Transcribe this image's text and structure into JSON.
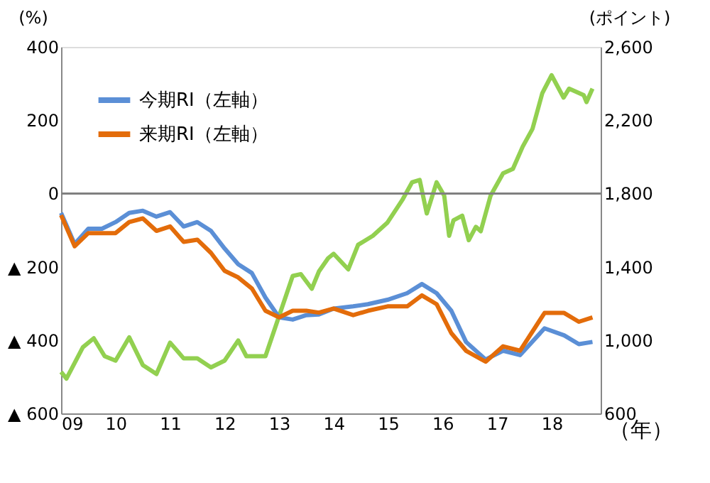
{
  "chart_data": {
    "type": "line",
    "ylabel": "(%)",
    "y2label": "(ポイント)",
    "xlabel": "（年）",
    "xlim": [
      2009,
      2018.9
    ],
    "xticks": [
      {
        "value": 2009,
        "label": "09"
      },
      {
        "value": 2010,
        "label": "10"
      },
      {
        "value": 2011,
        "label": "11"
      },
      {
        "value": 2012,
        "label": "12"
      },
      {
        "value": 2013,
        "label": "13"
      },
      {
        "value": 2014,
        "label": "14"
      },
      {
        "value": 2015,
        "label": "15"
      },
      {
        "value": 2016,
        "label": "16"
      },
      {
        "value": 2017,
        "label": "17"
      },
      {
        "value": 2018,
        "label": "18"
      }
    ],
    "ylim": [
      -600,
      400
    ],
    "yticks": [
      {
        "value": 400,
        "label": "400"
      },
      {
        "value": 200,
        "label": "200"
      },
      {
        "value": 0,
        "label": "0"
      },
      {
        "value": -200,
        "label": "▲ 200"
      },
      {
        "value": -400,
        "label": "▲ 400"
      },
      {
        "value": -600,
        "label": "▲ 600"
      }
    ],
    "y2lim": [
      600,
      2600
    ],
    "y2ticks": [
      {
        "value": 600,
        "label": "600"
      },
      {
        "value": 1000,
        "label": "1,000"
      },
      {
        "value": 1400,
        "label": "1,400"
      },
      {
        "value": 1800,
        "label": "1,800"
      },
      {
        "value": 2200,
        "label": "2,200"
      },
      {
        "value": 2600,
        "label": "2,600"
      }
    ],
    "grid": false,
    "legend": "top left",
    "line_style": "solid",
    "marker": "none",
    "ref_lines": [
      {
        "axis": "y",
        "value": 0,
        "color": "#808080"
      }
    ],
    "series": [
      {
        "name": "今期RI（左軸）",
        "color": "#5b8fd6",
        "x": [
          2009,
          2009.25,
          2009.5,
          2009.75,
          2010,
          2010.25,
          2010.5,
          2010.75,
          2011,
          2011.25,
          2011.5,
          2011.75,
          2012,
          2012.25,
          2012.5,
          2012.75,
          2013,
          2013.25,
          2013.5,
          2013.73,
          2014,
          2014.36,
          2014.63,
          2014.99,
          2015.35,
          2015.62,
          2015.89,
          2016.16,
          2016.43,
          2016.79,
          2017.11,
          2017.42,
          2017.87,
          2018.23,
          2018.5,
          2018.75
        ],
        "values": [
          -53,
          -138,
          -96,
          -96,
          -78,
          -53,
          -47,
          -63,
          -51,
          -90,
          -78,
          -102,
          -150,
          -193,
          -217,
          -284,
          -338,
          -344,
          -332,
          -330,
          -314,
          -308,
          -302,
          -290,
          -272,
          -247,
          -272,
          -320,
          -405,
          -453,
          -429,
          -441,
          -368,
          -387,
          -411,
          -405
        ]
      },
      {
        "name": "来期RI（左軸）",
        "color": "#e36c0a",
        "x": [
          2009,
          2009.25,
          2009.5,
          2009.75,
          2010,
          2010.25,
          2010.5,
          2010.75,
          2011,
          2011.25,
          2011.5,
          2011.75,
          2012,
          2012.25,
          2012.5,
          2012.75,
          2013,
          2013.25,
          2013.5,
          2013.73,
          2014,
          2014.36,
          2014.63,
          2014.99,
          2015.35,
          2015.62,
          2015.89,
          2016.16,
          2016.43,
          2016.79,
          2017.11,
          2017.42,
          2017.87,
          2018.23,
          2018.5,
          2018.75
        ],
        "values": [
          -59,
          -144,
          -108,
          -108,
          -108,
          -78,
          -68,
          -102,
          -90,
          -132,
          -126,
          -162,
          -211,
          -229,
          -259,
          -320,
          -338,
          -320,
          -320,
          -325,
          -314,
          -332,
          -320,
          -308,
          -308,
          -278,
          -302,
          -381,
          -429,
          -459,
          -417,
          -429,
          -326,
          -326,
          -350,
          -338
        ]
      },
      {
        "color": "#92d050",
        "axis": "y2",
        "x": [
          2009,
          2009.1,
          2009.4,
          2009.6,
          2009.8,
          2010,
          2010.25,
          2010.5,
          2010.75,
          2011,
          2011.25,
          2011.5,
          2011.75,
          2012,
          2012.25,
          2012.4,
          2012.75,
          2013,
          2013.25,
          2013.4,
          2013.6,
          2013.73,
          2013.9,
          2014,
          2014.27,
          2014.45,
          2014.72,
          2014.99,
          2015.26,
          2015.44,
          2015.58,
          2015.71,
          2015.89,
          2016.03,
          2016.12,
          2016.2,
          2016.36,
          2016.48,
          2016.61,
          2016.7,
          2016.88,
          2017.11,
          2017.29,
          2017.47,
          2017.65,
          2017.83,
          2018,
          2018.22,
          2018.32,
          2018.59,
          2018.64,
          2018.75
        ],
        "values": [
          826,
          790,
          961,
          1010,
          912,
          888,
          1015,
          864,
          815,
          986,
          900,
          900,
          851,
          888,
          998,
          912,
          912,
          1131,
          1350,
          1360,
          1280,
          1374,
          1447,
          1471,
          1386,
          1520,
          1569,
          1642,
          1764,
          1861,
          1874,
          1691,
          1861,
          1788,
          1569,
          1654,
          1679,
          1545,
          1618,
          1594,
          1788,
          1910,
          1934,
          2056,
          2153,
          2348,
          2445,
          2323,
          2372,
          2336,
          2299,
          2372
        ]
      }
    ]
  }
}
